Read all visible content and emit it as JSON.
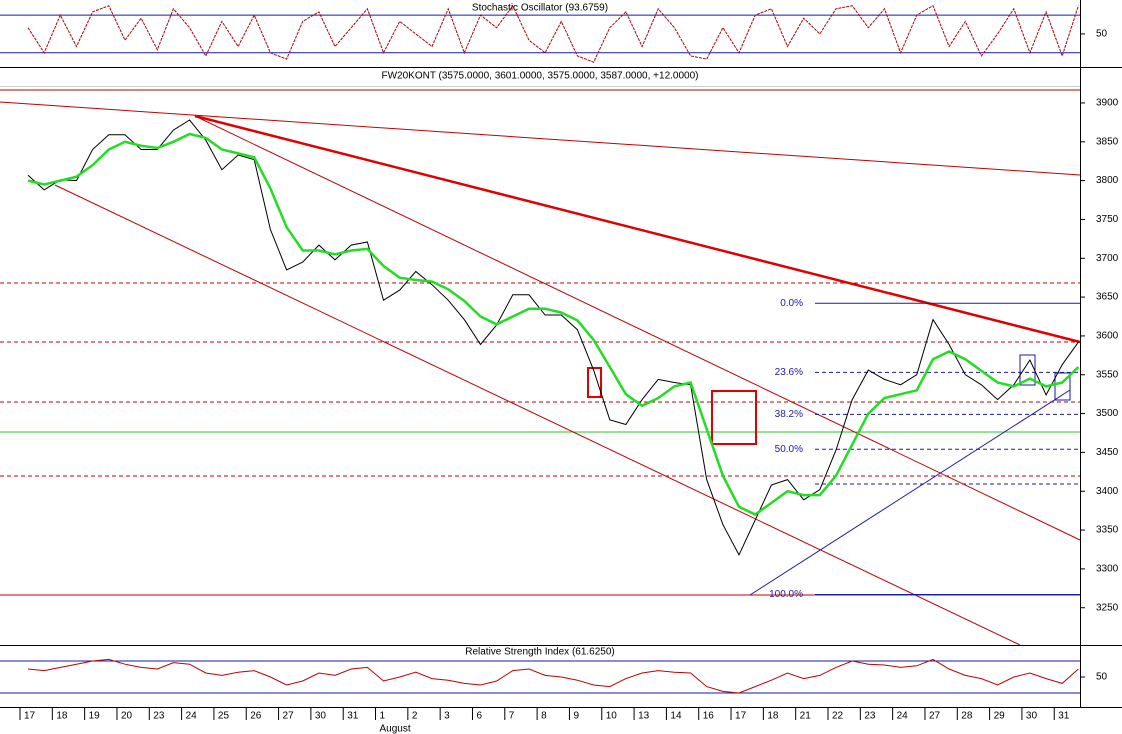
{
  "chart_data": [
    {
      "type": "line",
      "title": "Stochastic Oscillator (93.6759)",
      "ylim": [
        -1,
        104
      ],
      "yticks": [
        50
      ],
      "levels": [
        20,
        80
      ],
      "series": [
        {
          "color": "#b00000",
          "values": [
            60,
            20,
            80,
            30,
            85,
            95,
            40,
            75,
            25,
            90,
            60,
            15,
            70,
            30,
            80,
            20,
            10,
            70,
            85,
            30,
            60,
            90,
            20,
            70,
            50,
            30,
            90,
            20,
            80,
            60,
            95,
            40,
            20,
            70,
            15,
            5,
            60,
            85,
            30,
            90,
            60,
            15,
            10,
            60,
            20,
            80,
            90,
            30,
            75,
            50,
            90,
            95,
            60,
            90,
            20,
            80,
            95,
            30,
            70,
            15,
            50,
            90,
            20,
            85,
            15,
            95
          ]
        }
      ]
    },
    {
      "type": "line",
      "title": "FW20KONT (3575.0000, 3601.0000, 3575.0000, 3587.0000, +12.0000)",
      "ylim": [
        3202,
        3945
      ],
      "yticks": [
        3250,
        3300,
        3350,
        3400,
        3450,
        3500,
        3550,
        3600,
        3650,
        3700,
        3750,
        3800,
        3850,
        3900
      ],
      "series": [
        {
          "color": "#000000",
          "values": [
            3807,
            3788,
            3801,
            3800,
            3840,
            3859,
            3859,
            3840,
            3840,
            3865,
            3878,
            3852,
            3814,
            3833,
            3827,
            3737,
            3685,
            3695,
            3717,
            3698,
            3717,
            3721,
            3646,
            3659,
            3683,
            3666,
            3646,
            3621,
            3589,
            3614,
            3653,
            3653,
            3627,
            3627,
            3608,
            3556,
            3492,
            3486,
            3518,
            3544,
            3540,
            3537,
            3415,
            3357,
            3318,
            3363,
            3408,
            3415,
            3389,
            3402,
            3453,
            3518,
            3556,
            3544,
            3537,
            3550,
            3621,
            3589,
            3550,
            3537,
            3518,
            3537,
            3569,
            3524,
            3563,
            3592
          ]
        },
        {
          "color": "#22dd22",
          "values": [
            3800,
            3795,
            3800,
            3805,
            3820,
            3840,
            3850,
            3845,
            3842,
            3850,
            3860,
            3855,
            3840,
            3835,
            3830,
            3790,
            3740,
            3710,
            3710,
            3705,
            3710,
            3712,
            3690,
            3675,
            3672,
            3670,
            3660,
            3645,
            3625,
            3615,
            3625,
            3635,
            3635,
            3630,
            3620,
            3595,
            3560,
            3525,
            3510,
            3520,
            3535,
            3540,
            3480,
            3420,
            3380,
            3370,
            3385,
            3400,
            3395,
            3395,
            3420,
            3460,
            3500,
            3520,
            3525,
            3530,
            3570,
            3580,
            3570,
            3555,
            3540,
            3535,
            3545,
            3535,
            3540,
            3560
          ]
        }
      ],
      "fib_levels": [
        {
          "label": "0.0%",
          "value": 3642
        },
        {
          "label": "23.6%",
          "value": 3553
        },
        {
          "label": "38.2%",
          "value": 3499
        },
        {
          "label": "50.0%",
          "value": 3454
        },
        {
          "label": "100.0%",
          "value": 3267
        }
      ],
      "fib_color": "#1a1aa8"
    },
    {
      "type": "line",
      "title": "Relative Strength Index (61.6250)",
      "ylim": [
        12.5,
        87.5
      ],
      "yticks": [
        50
      ],
      "levels": [
        30,
        70
      ],
      "series": [
        {
          "color": "#c00000",
          "values": [
            60,
            58,
            62,
            66,
            70,
            72,
            66,
            62,
            60,
            68,
            66,
            55,
            52,
            56,
            58,
            50,
            40,
            45,
            55,
            52,
            60,
            62,
            45,
            50,
            56,
            48,
            46,
            42,
            40,
            45,
            58,
            60,
            52,
            50,
            46,
            40,
            38,
            48,
            55,
            58,
            56,
            55,
            38,
            32,
            30,
            38,
            46,
            55,
            48,
            52,
            62,
            70,
            66,
            65,
            62,
            64,
            72,
            60,
            52,
            48,
            40,
            50,
            55,
            48,
            42,
            60
          ]
        }
      ],
      "categories": [
        "17",
        null,
        "18",
        null,
        "19",
        null,
        "20",
        null,
        "23",
        null,
        "24",
        null,
        "25",
        null,
        "26",
        null,
        "27",
        null,
        "30",
        null,
        "31",
        null,
        "1",
        null,
        "2",
        null,
        "3",
        null,
        "6",
        null,
        "7",
        null,
        "8",
        null,
        "9",
        null,
        "10",
        null,
        "13",
        null,
        "14",
        null,
        "16",
        null,
        "17",
        null,
        "18",
        null,
        "21",
        null,
        "22",
        null,
        "23",
        null,
        "24",
        null,
        "27",
        null,
        "28",
        null,
        "29",
        null,
        "30",
        null,
        "31",
        null
      ],
      "month_label": "August"
    }
  ]
}
